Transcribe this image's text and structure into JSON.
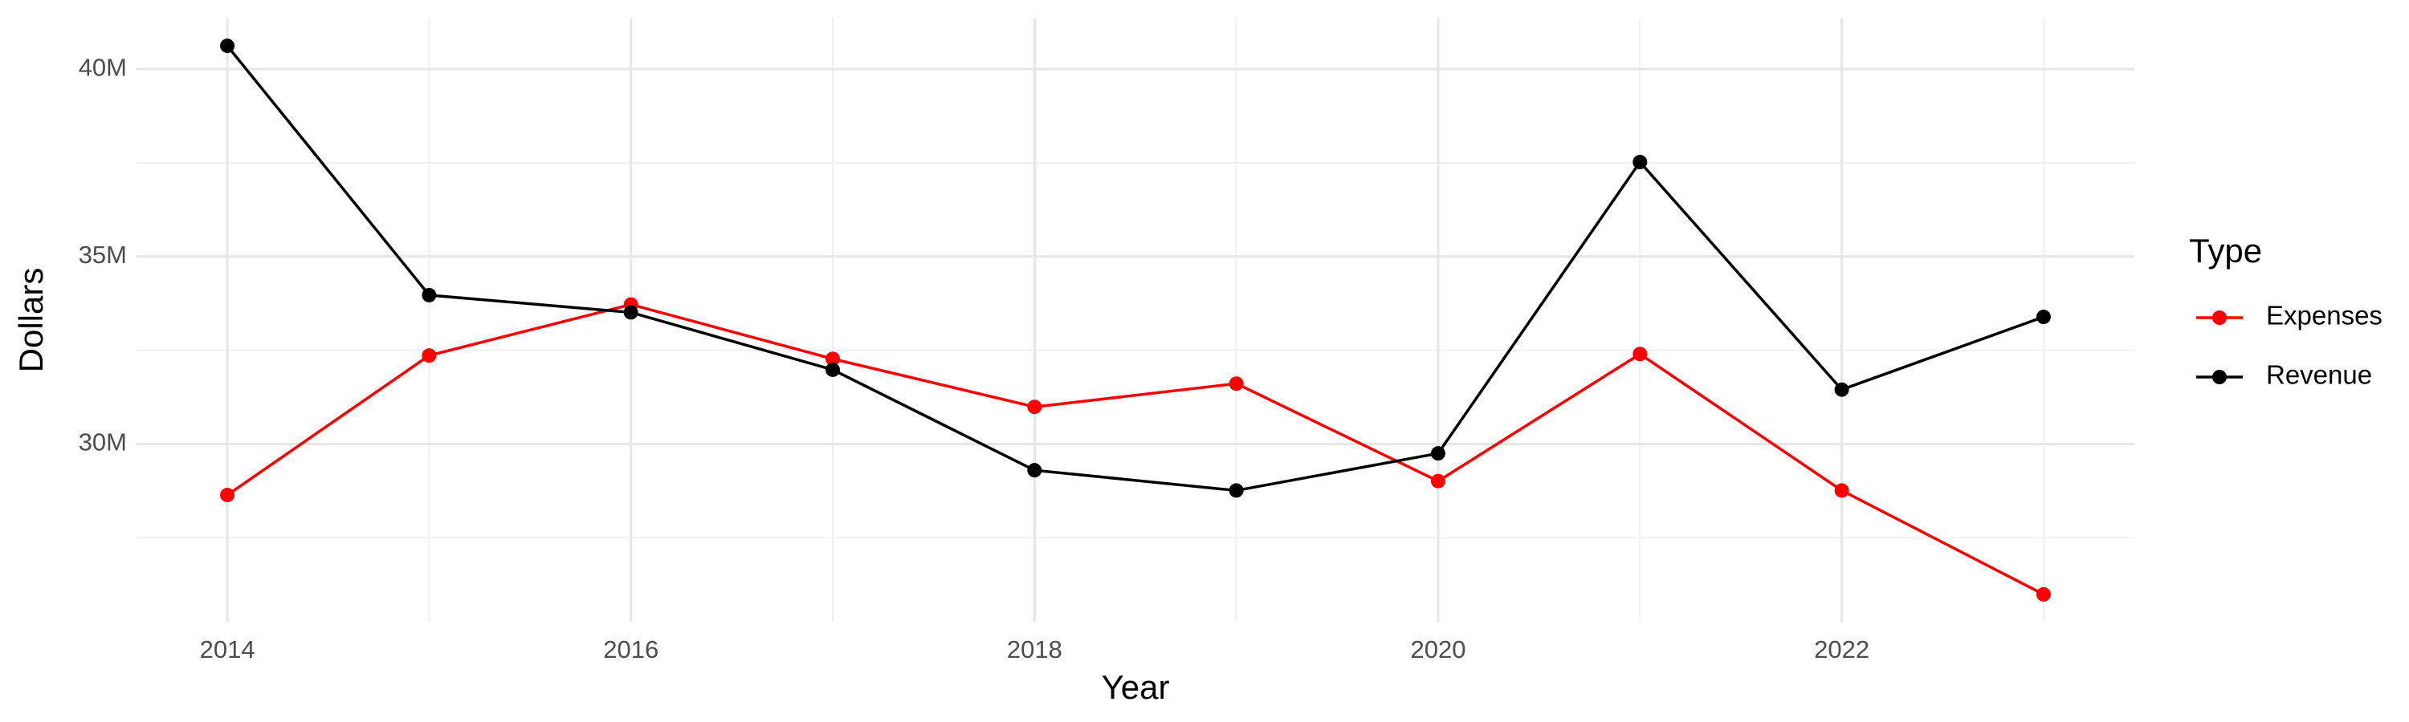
{
  "chart_data": {
    "type": "line",
    "x_label": "Year",
    "y_label": "Dollars",
    "legend_title": "Type",
    "x": [
      2014,
      2015,
      2016,
      2017,
      2018,
      2019,
      2020,
      2021,
      2022,
      2023
    ],
    "series": [
      {
        "name": "Expenses",
        "color": "#ff0000",
        "values": [
          28640000,
          32360000,
          33720000,
          32270000,
          30990000,
          31610000,
          29010000,
          32400000,
          28760000,
          25990000
        ]
      },
      {
        "name": "Revenue",
        "color": "#000000",
        "values": [
          40620000,
          33970000,
          33510000,
          31980000,
          29300000,
          28760000,
          29750000,
          37520000,
          31450000,
          33390000
        ]
      }
    ],
    "xlim": [
      2013.55,
      2023.45
    ],
    "xticks": [
      2014,
      2016,
      2018,
      2020,
      2022
    ],
    "x_minor_ticks": [
      2015,
      2017,
      2019,
      2021,
      2023
    ],
    "ylim": [
      25260000,
      41350000
    ],
    "yticks": [
      {
        "value": 30000000,
        "label": "30M"
      },
      {
        "value": 35000000,
        "label": "35M"
      },
      {
        "value": 40000000,
        "label": "40M"
      }
    ],
    "y_minor_ticks": [
      27500000,
      32500000,
      37500000
    ],
    "grid": true,
    "legend_position": "right"
  }
}
